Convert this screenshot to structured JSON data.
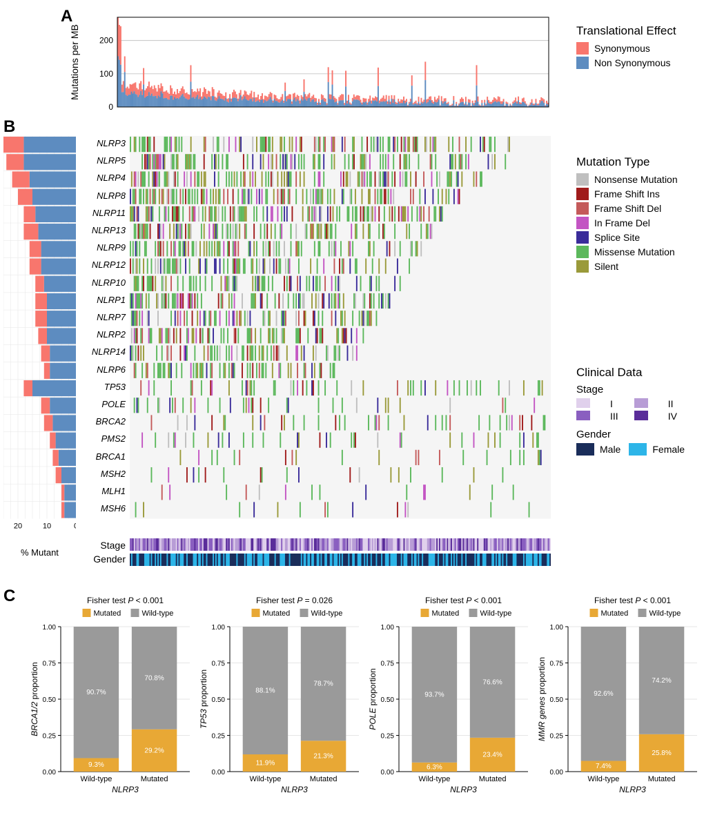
{
  "panels": {
    "A": "A",
    "B": "B",
    "C": "C"
  },
  "colors": {
    "synonymous": "#f8766d",
    "nonsynonymous": "#5d8cc0",
    "nonsense": "#bfbfbf",
    "frameshift_ins": "#a01c1c",
    "frameshift_del": "#c45a5a",
    "inframe_del": "#c355c3",
    "splice_site": "#3a2c9a",
    "missense": "#5cb85c",
    "silent": "#9a9a3a",
    "stage_i": "#e0d0ec",
    "stage_ii": "#b89dd6",
    "stage_iii": "#8a5fc0",
    "stage_iv": "#5a2d9a",
    "male": "#1a2d5a",
    "female": "#2db5e8",
    "mutated": "#e8a835",
    "wildtype": "#9a9a9a",
    "grid": "#e5e5e5",
    "axis": "#000000",
    "gridline_major": "#bbbbbb"
  },
  "legends": {
    "translational": {
      "title": "Translational Effect",
      "items": [
        "Synonymous",
        "Non Synonymous"
      ]
    },
    "mutation_type": {
      "title": "Mutation Type",
      "items": [
        "Nonsense Mutation",
        "Frame Shift Ins",
        "Frame Shift Del",
        "In Frame Del",
        "Splice Site",
        "Missense Mutation",
        "Silent"
      ]
    },
    "clinical": {
      "title": "Clinical Data",
      "stage_label": "Stage",
      "stages": [
        "I",
        "II",
        "III",
        "IV"
      ],
      "gender_label": "Gender",
      "genders": [
        "Male",
        "Female"
      ]
    },
    "panel_c": {
      "mutated": "Mutated",
      "wildtype": "Wild-type"
    }
  },
  "panelA": {
    "ylabel": "Mutations per MB",
    "ylim": [
      0,
      270
    ],
    "yticks": [
      0,
      100,
      200
    ],
    "n_samples": 320
  },
  "panelB": {
    "genes": [
      "NLRP3",
      "NLRP5",
      "NLRP4",
      "NLRP8",
      "NLRP11",
      "NLRP13",
      "NLRP9",
      "NLRP12",
      "NLRP10",
      "NLRP1",
      "NLRP7",
      "NLRP2",
      "NLRP14",
      "NLRP6",
      "TP53",
      "POLE",
      "BRCA2",
      "PMS2",
      "BRCA1",
      "MSH2",
      "MLH1",
      "MSH6"
    ],
    "pct_mutant": {
      "syn": [
        7,
        6,
        6,
        5,
        4,
        5,
        4,
        4,
        3,
        4,
        4,
        3,
        3,
        2,
        3,
        3,
        3,
        2,
        2,
        2,
        1,
        1
      ],
      "nonsyn": [
        18,
        18,
        16,
        15,
        14,
        13,
        12,
        12,
        11,
        10,
        10,
        10,
        9,
        9,
        15,
        9,
        8,
        7,
        6,
        5,
        4,
        4
      ]
    },
    "xlabel": "% Mutant",
    "xlim": [
      0,
      25
    ],
    "xticks": [
      0,
      10,
      20
    ],
    "waterfall_fill": [
      0.98,
      0.95,
      0.9,
      0.85,
      0.82,
      0.8,
      0.78,
      0.76,
      0.74,
      0.72,
      0.7,
      0.68,
      0.65,
      0.6,
      0.9,
      0.55,
      0.5,
      0.45,
      0.4,
      0.35,
      0.3,
      0.28
    ],
    "tracks": [
      "Stage",
      "Gender"
    ],
    "n_samples": 320
  },
  "panelC": {
    "xaxis": "NLRP3",
    "xticks": [
      "Wild-type",
      "Mutated"
    ],
    "yticks": [
      "0.00",
      "0.25",
      "0.50",
      "0.75",
      "1.00"
    ],
    "subplots": [
      {
        "ylabel": "BRCA1/2 proportion",
        "pvalue": "Fisher test  P < 0.001",
        "wt": {
          "mut": 9.3,
          "wt": 90.7
        },
        "mut": {
          "mut": 29.2,
          "wt": 70.8
        }
      },
      {
        "ylabel": "TP53 proportion",
        "pvalue": "Fisher test  P = 0.026",
        "wt": {
          "mut": 11.9,
          "wt": 88.1
        },
        "mut": {
          "mut": 21.3,
          "wt": 78.7
        }
      },
      {
        "ylabel": "POLE proportion",
        "pvalue": "Fisher test  P < 0.001",
        "wt": {
          "mut": 6.3,
          "wt": 93.7
        },
        "mut": {
          "mut": 23.4,
          "wt": 76.6
        }
      },
      {
        "ylabel": "MMR genes proportion",
        "pvalue": "Fisher test  P < 0.001",
        "wt": {
          "mut": 7.4,
          "wt": 92.6
        },
        "mut": {
          "mut": 25.8,
          "wt": 74.2
        }
      }
    ]
  }
}
